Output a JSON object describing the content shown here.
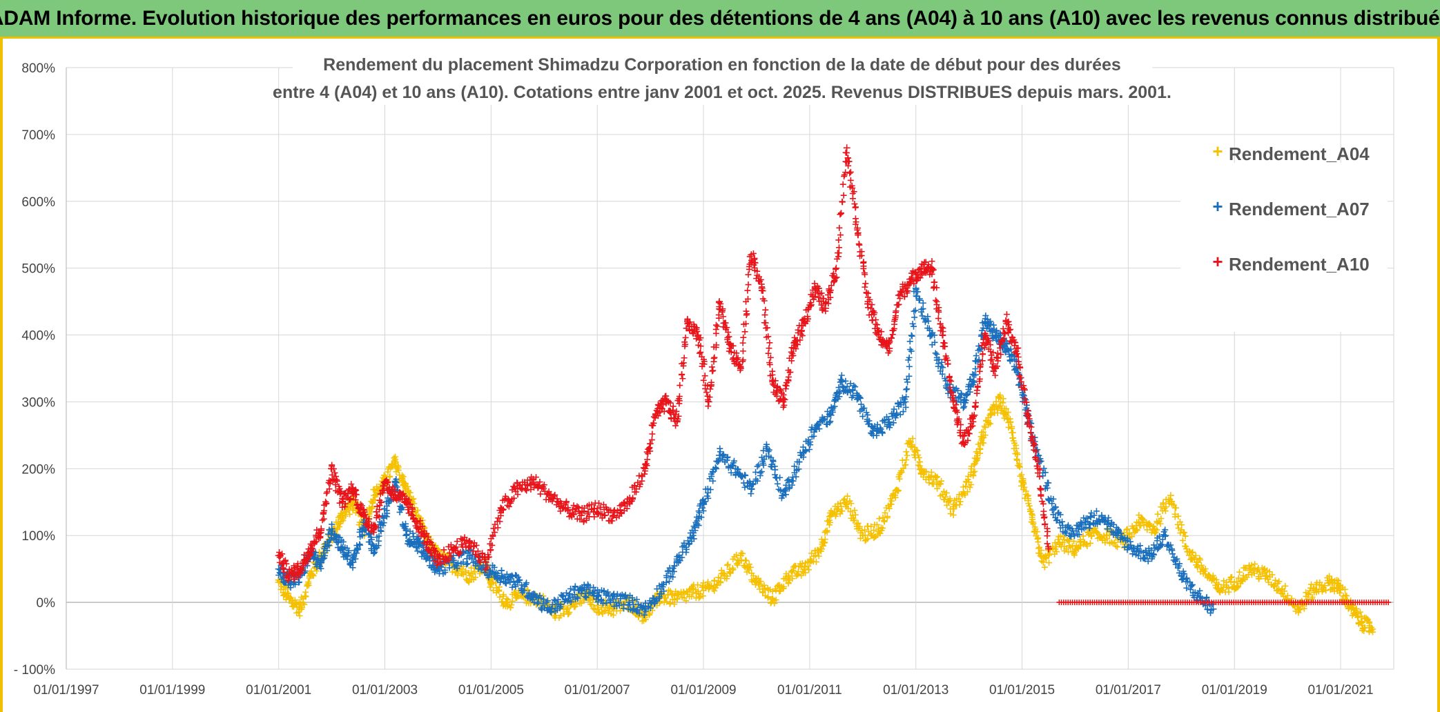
{
  "banner": {
    "text": "ADAM Informe. Evolution historique des performances en euros pour des détentions de 4 ans (A04) à 10 ans (A10) avec les revenus connus distribués"
  },
  "chart_data": {
    "type": "scatter",
    "title_lines": [
      "Rendement du placement Shimadzu Corporation en fonction de la date de début pour des durées",
      "entre 4 (A04) et 10 ans (A10). Cotations entre janv 2001 et oct. 2025. Revenus DISTRIBUES depuis mars. 2001."
    ],
    "xlabel": "",
    "ylabel": "",
    "y_ticks": [
      "- 100%",
      "0%",
      "100%",
      "200%",
      "300%",
      "400%",
      "500%",
      "600%",
      "700%",
      "800%"
    ],
    "x_ticks": [
      "01/01/1997",
      "01/01/1999",
      "01/01/2001",
      "01/01/2003",
      "01/01/2005",
      "01/01/2007",
      "01/01/2009",
      "01/01/2011",
      "01/01/2013",
      "01/01/2015",
      "01/01/2017",
      "01/01/2019",
      "01/01/2021"
    ],
    "xlim": [
      1997.0,
      2022.0
    ],
    "ylim": [
      -100,
      800
    ],
    "grid": true,
    "legend_position": "top-right",
    "marker": "+",
    "series": [
      {
        "name": "Rendement_A04",
        "color": "#f5c000",
        "x": [
          2001.0,
          2001.2,
          2001.4,
          2001.6,
          2001.8,
          2002.0,
          2002.2,
          2002.4,
          2002.6,
          2002.8,
          2003.0,
          2003.2,
          2003.4,
          2003.6,
          2003.8,
          2004.0,
          2004.3,
          2004.6,
          2004.9,
          2005.0,
          2005.3,
          2005.6,
          2005.9,
          2006.2,
          2006.5,
          2006.8,
          2007.0,
          2007.3,
          2007.6,
          2007.9,
          2008.2,
          2008.5,
          2008.8,
          2009.1,
          2009.4,
          2009.7,
          2010.0,
          2010.3,
          2010.6,
          2010.9,
          2011.2,
          2011.4,
          2011.7,
          2012.0,
          2012.3,
          2012.6,
          2012.9,
          2013.1,
          2013.4,
          2013.7,
          2014.0,
          2014.2,
          2014.4,
          2014.6,
          2014.8,
          2015.0,
          2015.2,
          2015.4,
          2015.7,
          2016.0,
          2016.3,
          2016.6,
          2016.9,
          2017.2,
          2017.5,
          2017.8,
          2018.1,
          2018.4,
          2018.7,
          2019.0,
          2019.3,
          2019.6,
          2019.9,
          2020.2,
          2020.5,
          2020.8,
          2021.0,
          2021.2,
          2021.4,
          2021.6
        ],
        "y": [
          30,
          5,
          -10,
          40,
          70,
          100,
          130,
          150,
          110,
          160,
          180,
          210,
          170,
          130,
          90,
          70,
          55,
          40,
          60,
          30,
          0,
          10,
          5,
          -15,
          -5,
          10,
          -5,
          -10,
          0,
          -20,
          10,
          5,
          15,
          20,
          40,
          70,
          30,
          5,
          40,
          50,
          80,
          130,
          150,
          100,
          110,
          160,
          240,
          200,
          180,
          140,
          180,
          230,
          280,
          300,
          260,
          180,
          120,
          60,
          90,
          80,
          100,
          100,
          90,
          120,
          110,
          160,
          80,
          50,
          20,
          30,
          50,
          40,
          20,
          -10,
          20,
          30,
          20,
          -10,
          -30,
          -40
        ]
      },
      {
        "name": "Rendement_A07",
        "color": "#1a6fbd",
        "x": [
          2001.0,
          2001.2,
          2001.4,
          2001.6,
          2001.8,
          2002.0,
          2002.2,
          2002.4,
          2002.6,
          2002.8,
          2003.0,
          2003.2,
          2003.4,
          2003.6,
          2003.8,
          2004.0,
          2004.3,
          2004.6,
          2004.9,
          2005.2,
          2005.5,
          2005.8,
          2006.1,
          2006.4,
          2006.7,
          2007.0,
          2007.3,
          2007.6,
          2007.9,
          2008.2,
          2008.5,
          2008.8,
          2009.0,
          2009.3,
          2009.6,
          2009.9,
          2010.2,
          2010.5,
          2010.8,
          2011.1,
          2011.4,
          2011.6,
          2011.9,
          2012.2,
          2012.5,
          2012.8,
          2013.0,
          2013.3,
          2013.6,
          2013.9,
          2014.1,
          2014.3,
          2014.5,
          2014.7,
          2014.9,
          2015.1,
          2015.3,
          2015.6,
          2015.9,
          2016.2,
          2016.5,
          2016.8,
          2017.1,
          2017.4,
          2017.7,
          2018.0,
          2018.3,
          2018.6
        ],
        "y": [
          50,
          30,
          40,
          70,
          60,
          110,
          80,
          60,
          120,
          80,
          130,
          180,
          100,
          90,
          70,
          50,
          60,
          70,
          50,
          40,
          30,
          10,
          -10,
          5,
          20,
          10,
          5,
          0,
          -10,
          20,
          60,
          100,
          150,
          220,
          200,
          170,
          230,
          160,
          210,
          260,
          280,
          330,
          310,
          250,
          270,
          300,
          470,
          400,
          320,
          300,
          340,
          420,
          400,
          380,
          350,
          280,
          220,
          140,
          100,
          120,
          130,
          100,
          80,
          70,
          100,
          40,
          10,
          -10
        ]
      },
      {
        "name": "Rendement_A10",
        "color": "#e8141a",
        "x": [
          2001.0,
          2001.2,
          2001.4,
          2001.6,
          2001.8,
          2002.0,
          2002.2,
          2002.4,
          2002.6,
          2002.8,
          2003.0,
          2003.2,
          2003.4,
          2003.6,
          2003.8,
          2004.0,
          2004.3,
          2004.6,
          2004.9,
          2005.2,
          2005.5,
          2005.8,
          2006.1,
          2006.4,
          2006.7,
          2007.0,
          2007.3,
          2007.6,
          2007.9,
          2008.1,
          2008.3,
          2008.5,
          2008.7,
          2008.9,
          2009.1,
          2009.3,
          2009.5,
          2009.7,
          2009.9,
          2010.1,
          2010.3,
          2010.5,
          2010.7,
          2010.9,
          2011.1,
          2011.3,
          2011.5,
          2011.7,
          2011.9,
          2012.1,
          2012.3,
          2012.5,
          2012.7,
          2012.9,
          2013.1,
          2013.3,
          2013.5,
          2013.7,
          2013.9,
          2014.1,
          2014.3,
          2014.5,
          2014.7,
          2014.9,
          2015.1,
          2015.3,
          2015.5
        ],
        "y": [
          70,
          40,
          50,
          80,
          110,
          200,
          150,
          170,
          130,
          110,
          180,
          160,
          150,
          120,
          90,
          60,
          80,
          90,
          60,
          140,
          170,
          180,
          160,
          140,
          130,
          140,
          130,
          150,
          200,
          280,
          300,
          270,
          420,
          400,
          300,
          450,
          380,
          350,
          520,
          470,
          330,
          300,
          380,
          420,
          470,
          440,
          500,
          680,
          560,
          450,
          400,
          380,
          460,
          480,
          500,
          500,
          400,
          300,
          240,
          280,
          400,
          350,
          420,
          380,
          280,
          200,
          80
        ]
      },
      {
        "name": "",
        "color": "#e8141a",
        "x": [
          2015.7,
          2021.9
        ],
        "y": [
          0,
          0
        ],
        "style": "flat-band"
      }
    ]
  }
}
